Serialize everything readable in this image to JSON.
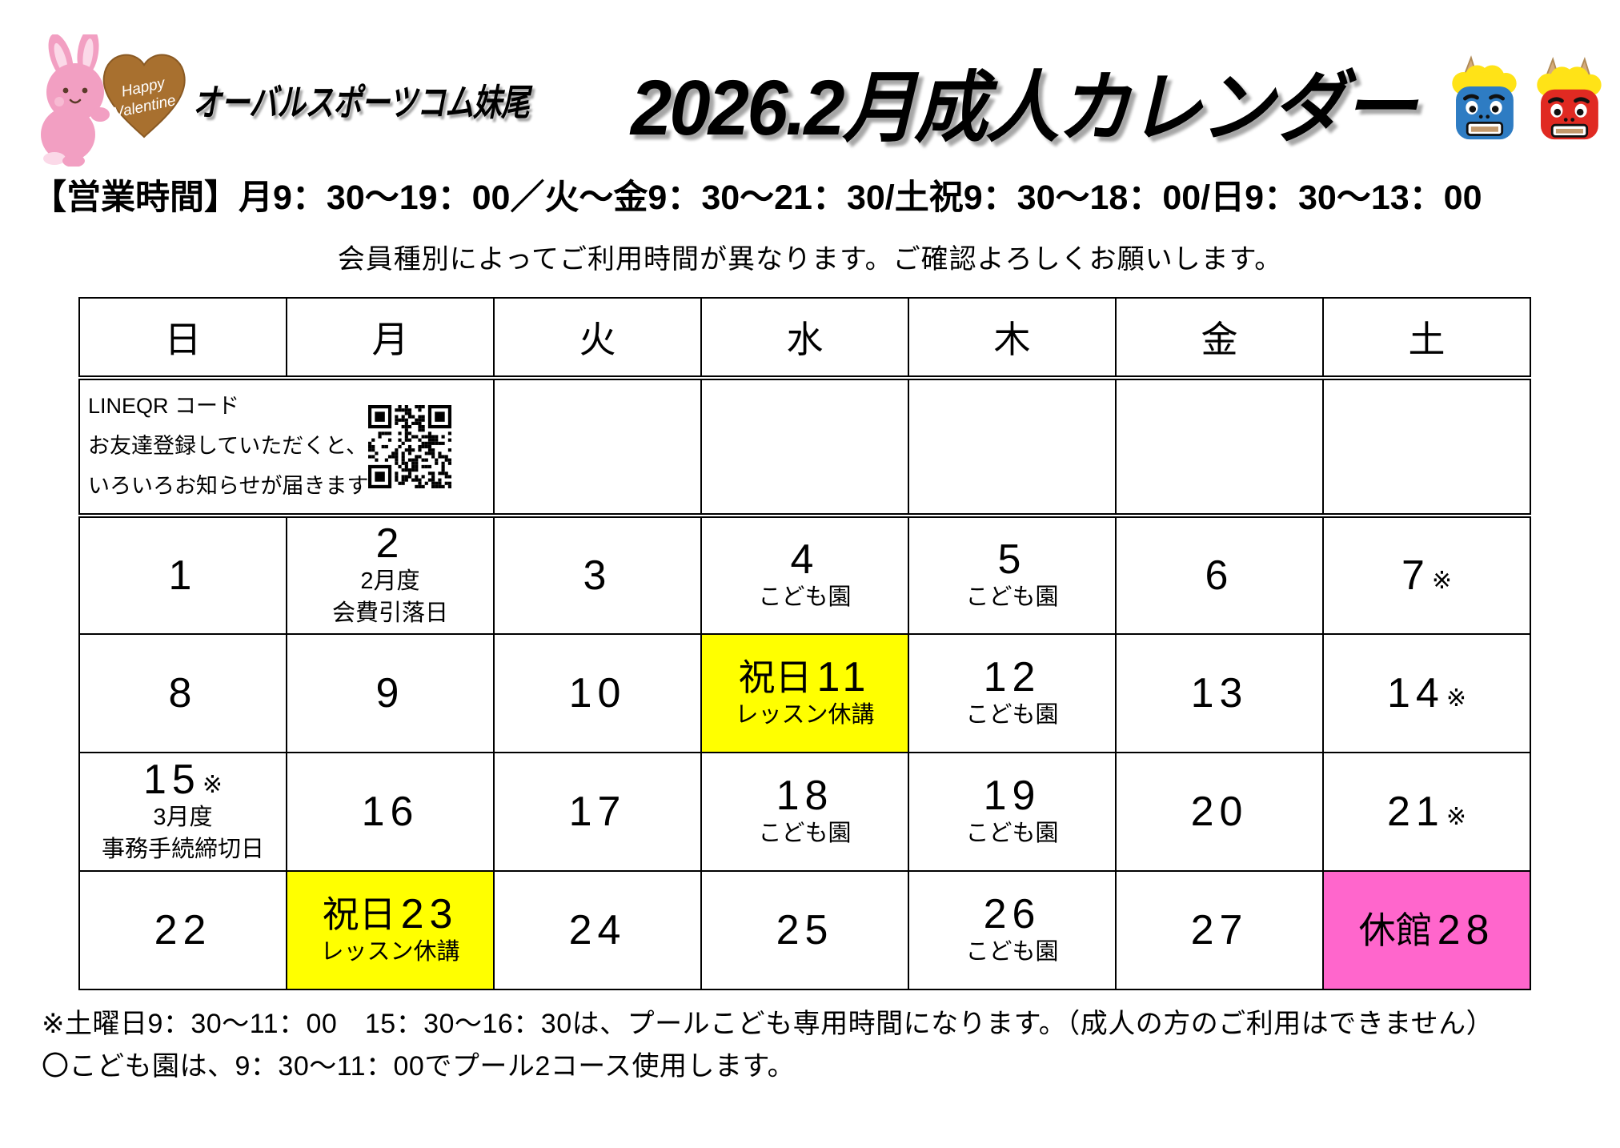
{
  "header": {
    "brand": "オーバルスポーツコム妹尾",
    "title": "2026.2月成人カレンダー",
    "heart_line1": "Happy",
    "heart_line2": "Valentine"
  },
  "hours_line": "【営業時間】月9：30〜19：00／火〜金9：30〜21：30/土祝9：30〜18：00/日9：30〜13：00",
  "notice_line": "会員種別によってご利用時間が異なります。ご確認よろしくお願いします。",
  "calendar": {
    "weekdays": [
      "日",
      "月",
      "火",
      "水",
      "木",
      "金",
      "土"
    ],
    "qr_note_lines": [
      "LINEQR コード",
      "お友達登録していただくと、",
      "いろいろお知らせが届きます"
    ],
    "weeks": [
      [
        {
          "day": "1"
        },
        {
          "day": "2",
          "notes": [
            "2月度",
            "会費引落日"
          ]
        },
        {
          "day": "3"
        },
        {
          "day": "4",
          "notes": [
            "こども園"
          ]
        },
        {
          "day": "5",
          "notes": [
            "こども園"
          ]
        },
        {
          "day": "6"
        },
        {
          "day": "7",
          "mark": "※"
        }
      ],
      [
        {
          "day": "8"
        },
        {
          "day": "9"
        },
        {
          "day": "10"
        },
        {
          "day": "11",
          "prefix": "祝日",
          "notes": [
            "レッスン休講"
          ],
          "bg": "holiday"
        },
        {
          "day": "12",
          "notes": [
            "こども園"
          ]
        },
        {
          "day": "13"
        },
        {
          "day": "14",
          "mark": "※"
        }
      ],
      [
        {
          "day": "15",
          "mark": "※",
          "notes": [
            "3月度",
            "事務手続締切日"
          ]
        },
        {
          "day": "16"
        },
        {
          "day": "17"
        },
        {
          "day": "18",
          "notes": [
            "こども園"
          ]
        },
        {
          "day": "19",
          "notes": [
            "こども園"
          ]
        },
        {
          "day": "20"
        },
        {
          "day": "21",
          "mark": "※"
        }
      ],
      [
        {
          "day": "22"
        },
        {
          "day": "23",
          "prefix": "祝日",
          "notes": [
            "レッスン休講"
          ],
          "bg": "holiday"
        },
        {
          "day": "24"
        },
        {
          "day": "25"
        },
        {
          "day": "26",
          "notes": [
            "こども園"
          ]
        },
        {
          "day": "27"
        },
        {
          "day": "28",
          "prefix": "休館",
          "bg": "closed"
        }
      ]
    ]
  },
  "footnotes": [
    "※土曜日9：30〜11：00　15：30〜16：30は、プールこども専用時間になります。（成人の方のご利用はできません）",
    "〇こども園は、9：30〜11：00でプール2コース使用します。"
  ],
  "colors": {
    "holiday_bg": "#FFFF00",
    "closed_bg": "#FF66CC",
    "blue_oni": "#2E7CC3",
    "red_oni": "#E02A22",
    "oni_hair": "#FFE317",
    "heart_brown": "#A8702F",
    "rabbit_pink": "#F29FC2"
  }
}
